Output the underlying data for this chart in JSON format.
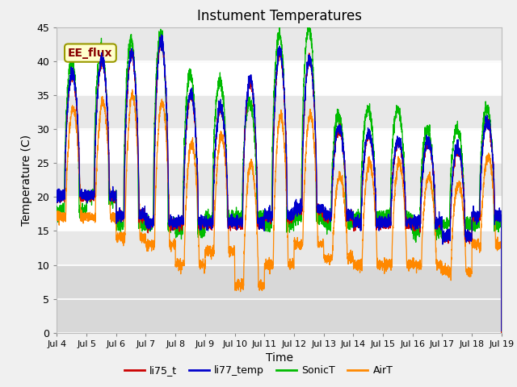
{
  "title": "Instument Temperatures",
  "xlabel": "Time",
  "ylabel": "Temperature (C)",
  "ylim": [
    0,
    45
  ],
  "x_tick_labels": [
    "Jul 4",
    "Jul 5",
    "Jul 6",
    "Jul 7",
    "Jul 8",
    "Jul 9",
    "Jul 10",
    "Jul 11",
    "Jul 12",
    "Jul 13",
    "Jul 14",
    "Jul 15",
    "Jul 16",
    "Jul 17",
    "Jul 18",
    "Jul 19"
  ],
  "annotation_text": "EE_flux",
  "annotation_bg": "#ffffcc",
  "annotation_border": "#999900",
  "bg_color": "#ffffff",
  "band_color": "#e8e8e8",
  "colors": {
    "li75_t": "#cc0000",
    "li77_temp": "#0000cc",
    "SonicT": "#00bb00",
    "AirT": "#ff8800"
  },
  "legend_labels": [
    "li75_t",
    "li77_temp",
    "SonicT",
    "AirT"
  ],
  "title_fontsize": 12,
  "axis_label_fontsize": 10,
  "n_days": 15,
  "li_night_min": [
    20,
    20,
    17,
    16,
    16,
    16,
    16,
    17,
    18,
    17,
    16,
    16,
    16,
    14,
    17
  ],
  "li_day_amp": [
    18,
    20,
    24,
    27,
    19,
    17,
    21,
    24,
    22,
    13,
    13,
    12,
    12,
    13,
    14
  ],
  "sonic_night": [
    18,
    20,
    16,
    16,
    15,
    17,
    17,
    16,
    17,
    16,
    17,
    17,
    15,
    16,
    16
  ],
  "sonic_amp": [
    22,
    22,
    27,
    28,
    23,
    20,
    17,
    28,
    28,
    16,
    16,
    16,
    15,
    14,
    17
  ],
  "air_night": [
    17,
    17,
    14,
    13,
    10,
    12,
    7,
    10,
    13,
    11,
    10,
    10,
    10,
    9,
    13
  ],
  "air_amp": [
    16,
    17,
    21,
    21,
    18,
    17,
    18,
    22,
    19,
    12,
    15,
    15,
    13,
    13,
    13
  ]
}
